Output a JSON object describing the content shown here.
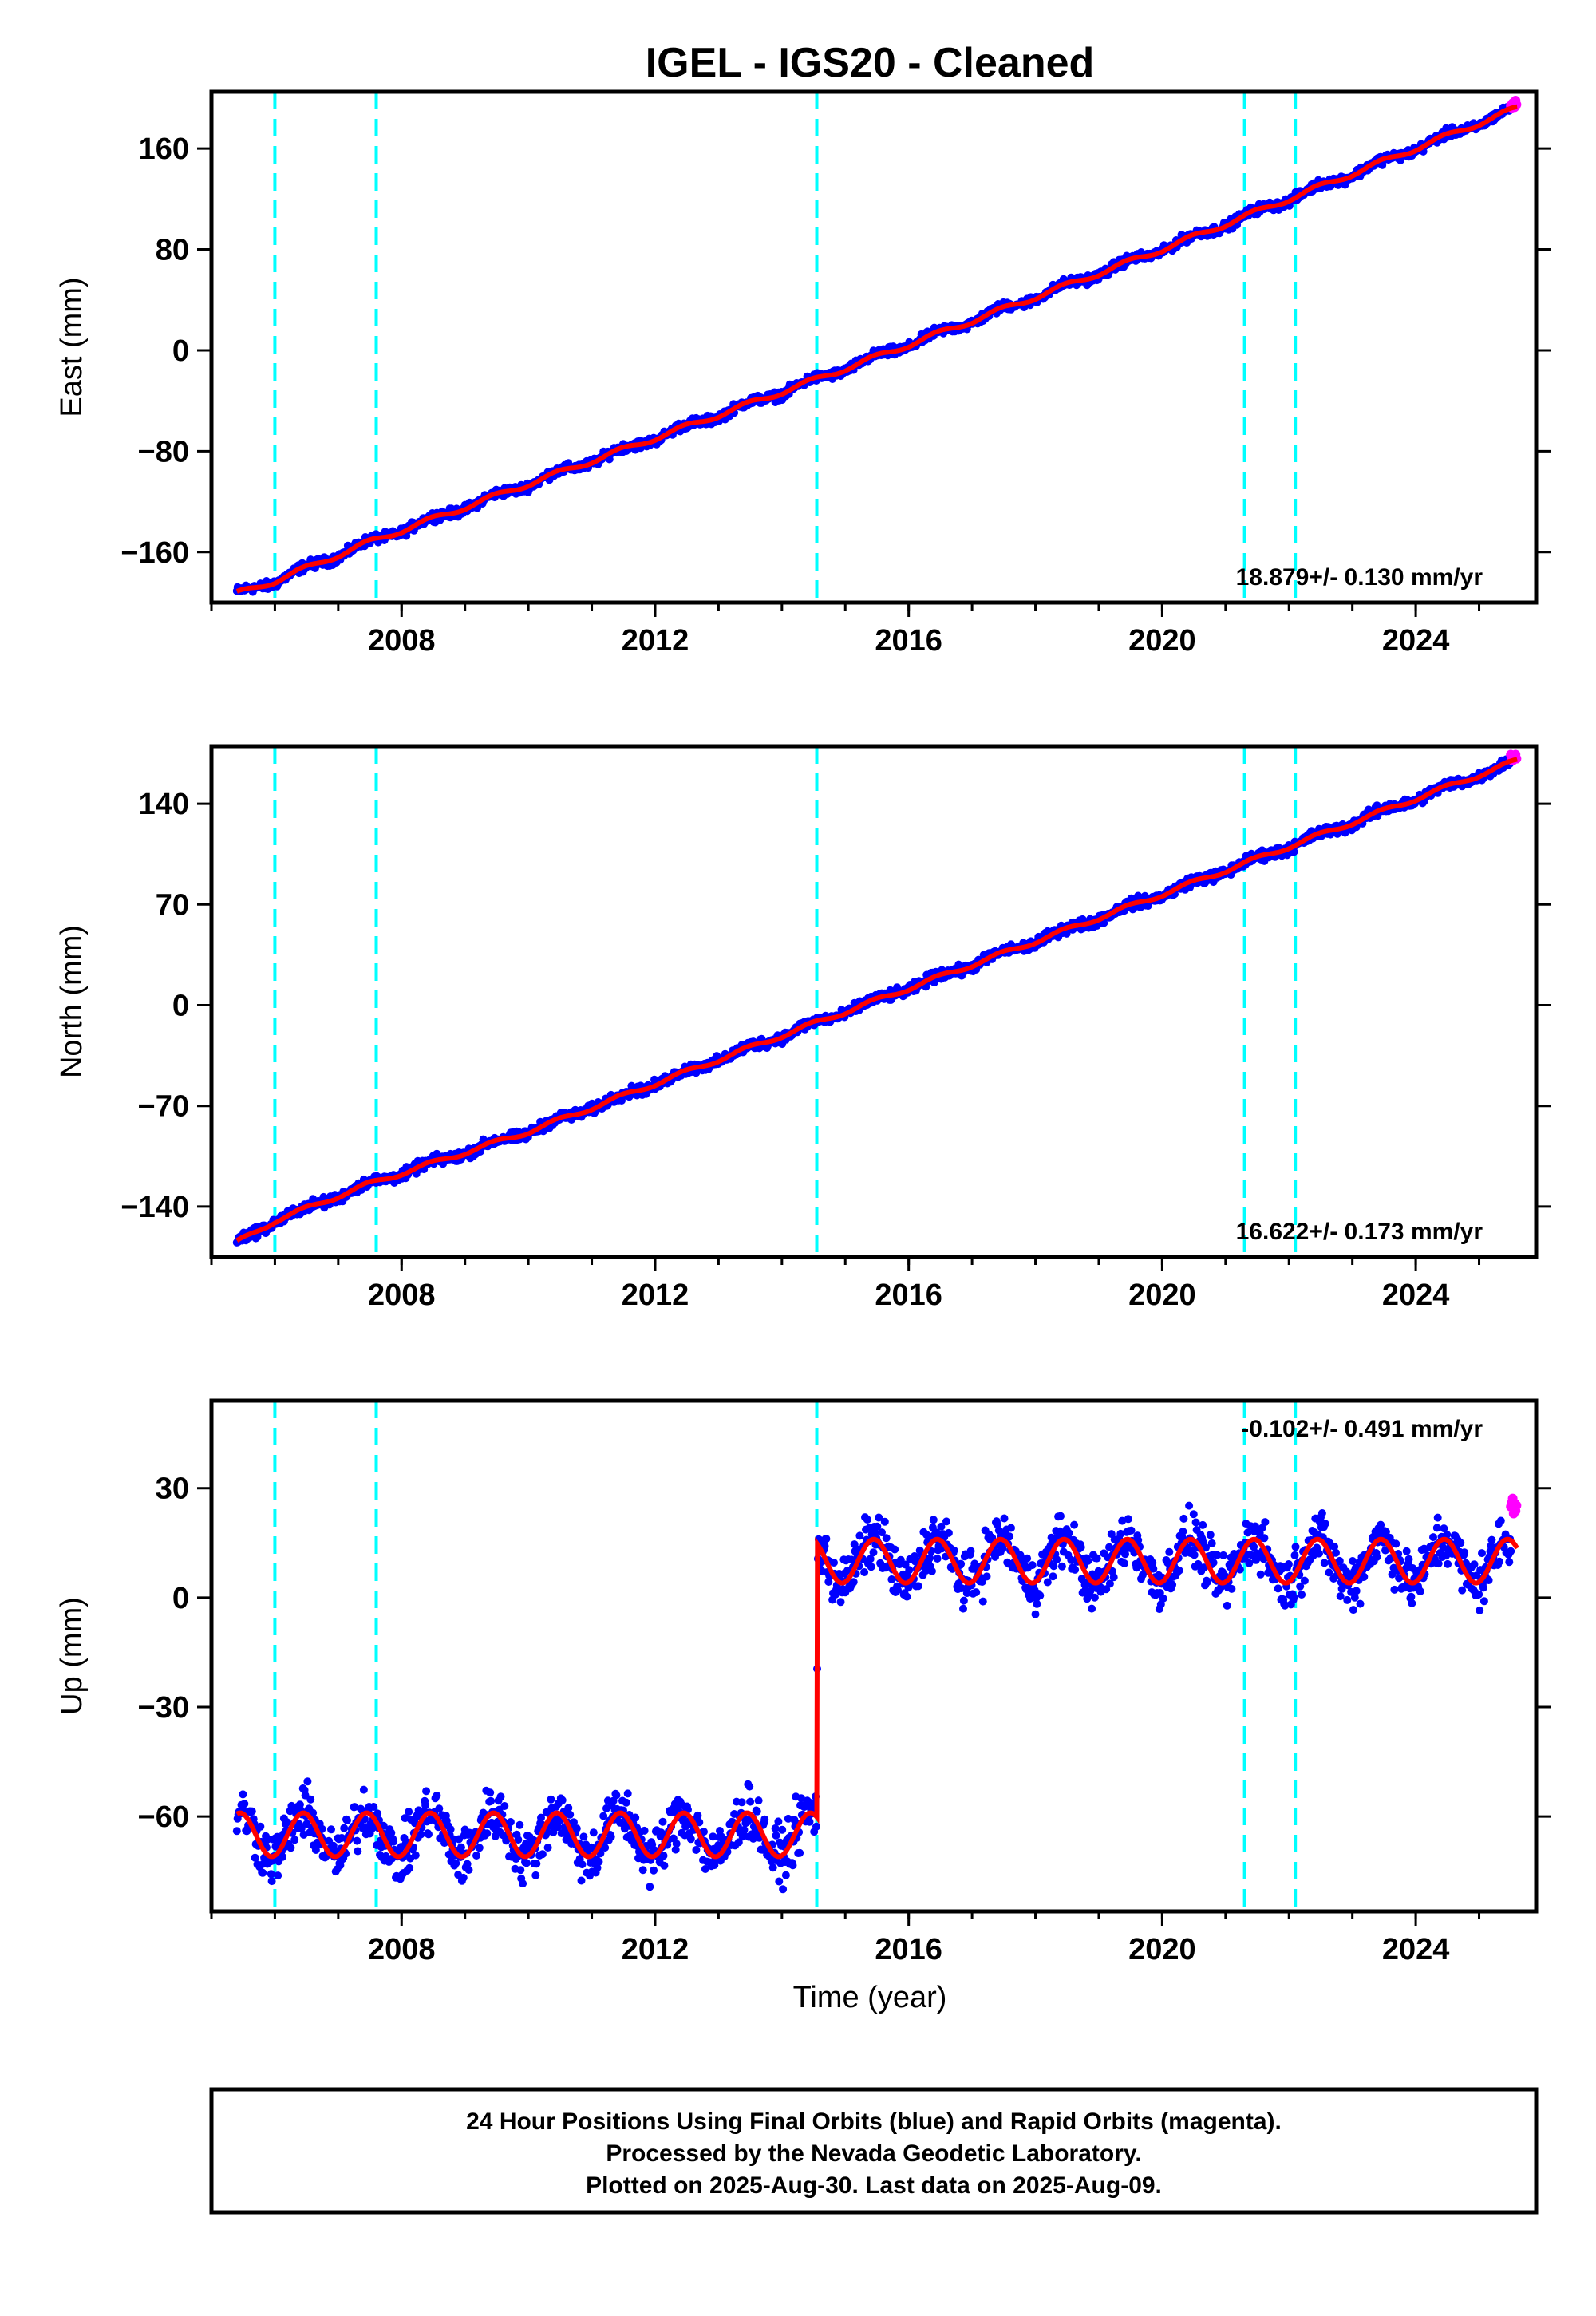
{
  "title": "IGEL  - IGS20 - Cleaned",
  "colors": {
    "final_orbits": "#0000ff",
    "rapid_orbits": "#ff00ff",
    "model": "#ff0000",
    "steps": "#00ffff"
  },
  "chart_data": [
    {
      "type": "scatter",
      "name": "east",
      "ylabel": "East (mm)",
      "xlim": [
        2005.0,
        2025.9
      ],
      "ylim": [
        -200,
        205
      ],
      "x_ticks": [
        2008,
        2012,
        2016,
        2020,
        2024
      ],
      "y_ticks": [
        -160,
        -80,
        0,
        80,
        160
      ],
      "y_tick_labels": [
        "−160",
        "−80",
        "0",
        "80",
        "160"
      ],
      "rate_text": "18.879+/- 0.130 mm/yr",
      "step_epochs": [
        2006.0,
        2007.6,
        2014.55,
        2021.3,
        2022.1
      ],
      "series": [
        {
          "x": [
            2005.4,
            2006.0,
            2007.5,
            2010.0,
            2014.55,
            2020.0,
            2025.6
          ],
          "values": [
            -193,
            -183,
            -152,
            -106,
            -23,
            80,
            192
          ]
        }
      ],
      "annual_amplitude": 2,
      "scatter_noise": 3
    },
    {
      "type": "scatter",
      "name": "north",
      "ylabel": "North (mm)",
      "xlim": [
        2005.0,
        2025.9
      ],
      "ylim": [
        -175,
        180
      ],
      "x_ticks": [
        2008,
        2012,
        2016,
        2020,
        2024
      ],
      "y_ticks": [
        -140,
        -70,
        0,
        70,
        140
      ],
      "y_tick_labels": [
        "−140",
        "−70",
        "0",
        "70",
        "140"
      ],
      "rate_text": "16.622+/- 0.173 mm/yr",
      "step_epochs": [
        2006.0,
        2007.6,
        2014.55,
        2021.3,
        2022.1
      ],
      "series": [
        {
          "x": [
            2005.4,
            2006.0,
            2007.5,
            2010.0,
            2014.55,
            2020.0,
            2025.6
          ],
          "values": [
            -165,
            -150,
            -124,
            -88,
            -12,
            77,
            170
          ]
        }
      ],
      "annual_amplitude": 1.5,
      "scatter_noise": 3
    },
    {
      "type": "scatter",
      "name": "up",
      "ylabel": "Up (mm)",
      "xlabel": "Time (year)",
      "xlim": [
        2005.0,
        2025.9
      ],
      "ylim": [
        -86,
        54
      ],
      "x_ticks": [
        2008,
        2012,
        2016,
        2020,
        2024
      ],
      "y_ticks": [
        -60,
        -30,
        0,
        30
      ],
      "y_tick_labels": [
        "−60",
        "−30",
        "0",
        "30"
      ],
      "rate_text": "-0.102+/- 0.491 mm/yr",
      "step_epochs": [
        2006.0,
        2007.6,
        2014.55,
        2021.3,
        2022.1
      ],
      "series": [
        {
          "x": [
            2005.4,
            2014.55,
            2014.56,
            2025.6
          ],
          "values": [
            -65,
            -65,
            10,
            10
          ]
        }
      ],
      "annual_amplitude": 6,
      "scatter_noise": 6
    }
  ],
  "footer": {
    "line1": "24 Hour Positions Using Final Orbits (blue) and Rapid Orbits (magenta).",
    "line2": "Processed by the Nevada Geodetic Laboratory.",
    "line3": "Plotted on 2025-Aug-30. Last data on 2025-Aug-09."
  }
}
